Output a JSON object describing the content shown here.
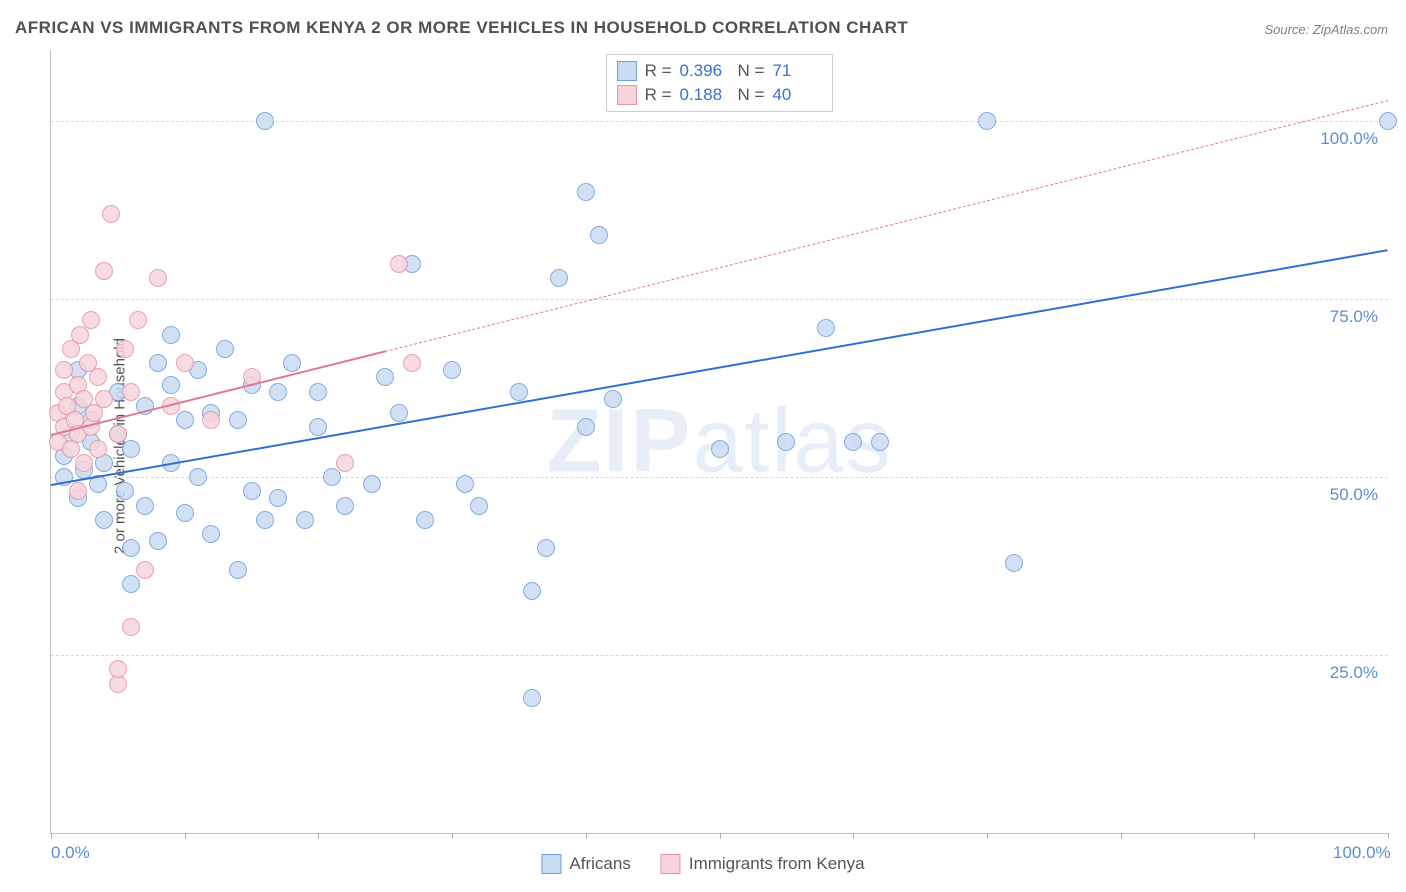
{
  "title": "AFRICAN VS IMMIGRANTS FROM KENYA 2 OR MORE VEHICLES IN HOUSEHOLD CORRELATION CHART",
  "source": "Source: ZipAtlas.com",
  "ylabel": "2 or more Vehicles in Household",
  "watermark_a": "ZIP",
  "watermark_b": "atlas",
  "chart": {
    "type": "scatter",
    "xlim": [
      0,
      100
    ],
    "ylim": [
      0,
      110
    ],
    "y_grid": [
      25,
      50,
      75,
      100
    ],
    "y_tick_labels": [
      "25.0%",
      "50.0%",
      "75.0%",
      "100.0%"
    ],
    "x_ticks": [
      0,
      10,
      20,
      30,
      40,
      50,
      60,
      70,
      80,
      90,
      100
    ],
    "x_tick_labels": {
      "0": "0.0%",
      "100": "100.0%"
    },
    "background_color": "#ffffff",
    "grid_color": "#d8d8d8",
    "marker_radius": 9,
    "marker_stroke_width": 1.2,
    "line_width": 2.5,
    "series": [
      {
        "name": "Africans",
        "legend_label": "Africans",
        "fill": "#c9dcf2",
        "stroke": "#6f9fe0",
        "line_color": "#2f6fd0",
        "line_dash": "solid",
        "r_value": "0.396",
        "n_value": "71",
        "trend": {
          "x1": 0,
          "y1": 49,
          "x2": 100,
          "y2": 82
        },
        "points": [
          [
            1,
            50
          ],
          [
            1,
            53
          ],
          [
            1.5,
            56
          ],
          [
            2,
            60
          ],
          [
            2,
            47
          ],
          [
            2,
            65
          ],
          [
            2.5,
            51
          ],
          [
            3,
            58
          ],
          [
            3,
            55
          ],
          [
            3.5,
            49
          ],
          [
            4,
            52
          ],
          [
            4,
            44
          ],
          [
            5,
            62
          ],
          [
            5,
            56
          ],
          [
            5.5,
            48
          ],
          [
            6,
            40
          ],
          [
            6,
            54
          ],
          [
            7,
            46
          ],
          [
            7,
            60
          ],
          [
            8,
            41
          ],
          [
            8,
            66
          ],
          [
            9,
            52
          ],
          [
            9,
            63
          ],
          [
            10,
            58
          ],
          [
            10,
            45
          ],
          [
            11,
            50
          ],
          [
            11,
            65
          ],
          [
            12,
            42
          ],
          [
            12,
            59
          ],
          [
            13,
            68
          ],
          [
            14,
            37
          ],
          [
            14,
            58
          ],
          [
            15,
            63
          ],
          [
            15,
            48
          ],
          [
            16,
            44
          ],
          [
            16,
            100
          ],
          [
            17,
            62
          ],
          [
            17,
            47
          ],
          [
            18,
            66
          ],
          [
            19,
            44
          ],
          [
            20,
            57
          ],
          [
            20,
            62
          ],
          [
            21,
            50
          ],
          [
            22,
            46
          ],
          [
            24,
            49
          ],
          [
            25,
            64
          ],
          [
            26,
            59
          ],
          [
            27,
            80
          ],
          [
            28,
            44
          ],
          [
            30,
            65
          ],
          [
            31,
            49
          ],
          [
            32,
            46
          ],
          [
            35,
            62
          ],
          [
            36,
            34
          ],
          [
            36,
            19
          ],
          [
            37,
            40
          ],
          [
            38,
            78
          ],
          [
            40,
            90
          ],
          [
            40,
            57
          ],
          [
            41,
            84
          ],
          [
            42,
            61
          ],
          [
            50,
            54
          ],
          [
            55,
            55
          ],
          [
            58,
            71
          ],
          [
            60,
            55
          ],
          [
            62,
            55
          ],
          [
            70,
            100
          ],
          [
            72,
            38
          ],
          [
            100,
            100
          ],
          [
            6,
            35
          ],
          [
            9,
            70
          ]
        ]
      },
      {
        "name": "Immigrants from Kenya",
        "legend_label": "Immigrants from Kenya",
        "fill": "#f7d4dc",
        "stroke": "#e593a7",
        "line_color": "#e07a93",
        "line_dash": "dashed",
        "r_value": "0.188",
        "n_value": "40",
        "trend_solid_until": 25,
        "trend": {
          "x1": 0,
          "y1": 56,
          "x2": 100,
          "y2": 103
        },
        "points": [
          [
            0.5,
            55
          ],
          [
            0.5,
            59
          ],
          [
            1,
            62
          ],
          [
            1,
            57
          ],
          [
            1,
            65
          ],
          [
            1.2,
            60
          ],
          [
            1.5,
            54
          ],
          [
            1.5,
            68
          ],
          [
            1.8,
            58
          ],
          [
            2,
            56
          ],
          [
            2,
            63
          ],
          [
            2,
            48
          ],
          [
            2.2,
            70
          ],
          [
            2.5,
            61
          ],
          [
            2.5,
            52
          ],
          [
            2.8,
            66
          ],
          [
            3,
            57
          ],
          [
            3,
            72
          ],
          [
            3.2,
            59
          ],
          [
            3.5,
            64
          ],
          [
            3.5,
            54
          ],
          [
            4,
            79
          ],
          [
            4,
            61
          ],
          [
            4.5,
            87
          ],
          [
            5,
            56
          ],
          [
            5,
            21
          ],
          [
            5,
            23
          ],
          [
            5.5,
            68
          ],
          [
            6,
            62
          ],
          [
            6,
            29
          ],
          [
            6.5,
            72
          ],
          [
            7,
            37
          ],
          [
            8,
            78
          ],
          [
            9,
            60
          ],
          [
            10,
            66
          ],
          [
            12,
            58
          ],
          [
            15,
            64
          ],
          [
            22,
            52
          ],
          [
            26,
            80
          ],
          [
            27,
            66
          ]
        ]
      }
    ]
  },
  "stats_labels": {
    "r": "R =",
    "n": "N ="
  }
}
